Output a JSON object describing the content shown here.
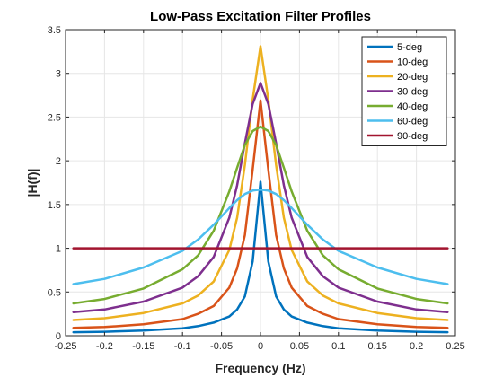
{
  "chart_data": {
    "type": "line",
    "title": "Low-Pass Excitation Filter Profiles",
    "xlabel": "Frequency (Hz)",
    "ylabel": "|H(f)|",
    "xlim": [
      -0.25,
      0.25
    ],
    "ylim": [
      0,
      3.5
    ],
    "xticks": [
      -0.25,
      -0.2,
      -0.15,
      -0.1,
      -0.05,
      0,
      0.05,
      0.1,
      0.15,
      0.2,
      0.25
    ],
    "xtick_labels": [
      "-0.25",
      "-0.2",
      "-0.15",
      "-0.1",
      "-0.05",
      "0",
      "0.05",
      "0.1",
      "0.15",
      "0.2",
      "0.25"
    ],
    "yticks": [
      0,
      0.5,
      1,
      1.5,
      2,
      2.5,
      3,
      3.5
    ],
    "ytick_labels": [
      "0",
      "0.5",
      "1",
      "1.5",
      "2",
      "2.5",
      "3",
      "3.5"
    ],
    "grid": true,
    "legend_position": "top-right",
    "x_range_plotted": [
      -0.24,
      0.24
    ],
    "series": [
      {
        "name": "5-deg",
        "color": "#0072BD",
        "x": [
          -0.24,
          -0.2,
          -0.15,
          -0.1,
          -0.08,
          -0.06,
          -0.04,
          -0.03,
          -0.02,
          -0.01,
          0,
          0.01,
          0.02,
          0.03,
          0.04,
          0.06,
          0.08,
          0.1,
          0.15,
          0.2,
          0.24
        ],
        "y": [
          0.04,
          0.045,
          0.06,
          0.085,
          0.11,
          0.15,
          0.22,
          0.3,
          0.45,
          0.85,
          1.76,
          0.85,
          0.45,
          0.3,
          0.22,
          0.15,
          0.11,
          0.085,
          0.06,
          0.045,
          0.04
        ]
      },
      {
        "name": "10-deg",
        "color": "#D95319",
        "x": [
          -0.24,
          -0.2,
          -0.15,
          -0.1,
          -0.08,
          -0.06,
          -0.04,
          -0.03,
          -0.02,
          -0.01,
          0,
          0.01,
          0.02,
          0.03,
          0.04,
          0.06,
          0.08,
          0.1,
          0.15,
          0.2,
          0.24
        ],
        "y": [
          0.09,
          0.1,
          0.13,
          0.19,
          0.25,
          0.34,
          0.55,
          0.77,
          1.15,
          1.9,
          2.69,
          1.9,
          1.15,
          0.77,
          0.55,
          0.34,
          0.25,
          0.19,
          0.13,
          0.1,
          0.09
        ]
      },
      {
        "name": "20-deg",
        "color": "#EDB120",
        "x": [
          -0.24,
          -0.2,
          -0.15,
          -0.1,
          -0.08,
          -0.06,
          -0.04,
          -0.03,
          -0.02,
          -0.01,
          0,
          0.01,
          0.02,
          0.03,
          0.04,
          0.06,
          0.08,
          0.1,
          0.15,
          0.2,
          0.24
        ],
        "y": [
          0.18,
          0.2,
          0.26,
          0.37,
          0.46,
          0.62,
          0.98,
          1.35,
          1.95,
          2.7,
          3.31,
          2.7,
          1.95,
          1.35,
          0.98,
          0.62,
          0.46,
          0.37,
          0.26,
          0.2,
          0.18
        ]
      },
      {
        "name": "30-deg",
        "color": "#7E2F8E",
        "x": [
          -0.24,
          -0.2,
          -0.15,
          -0.1,
          -0.08,
          -0.06,
          -0.04,
          -0.03,
          -0.02,
          -0.01,
          0,
          0.01,
          0.02,
          0.03,
          0.04,
          0.06,
          0.08,
          0.1,
          0.15,
          0.2,
          0.24
        ],
        "y": [
          0.27,
          0.3,
          0.39,
          0.55,
          0.68,
          0.9,
          1.35,
          1.72,
          2.2,
          2.65,
          2.89,
          2.65,
          2.2,
          1.72,
          1.35,
          0.9,
          0.68,
          0.55,
          0.39,
          0.3,
          0.27
        ]
      },
      {
        "name": "40-deg",
        "color": "#77AC30",
        "x": [
          -0.24,
          -0.2,
          -0.15,
          -0.1,
          -0.08,
          -0.06,
          -0.04,
          -0.03,
          -0.02,
          -0.01,
          0,
          0.01,
          0.02,
          0.03,
          0.04,
          0.06,
          0.08,
          0.1,
          0.15,
          0.2,
          0.24
        ],
        "y": [
          0.37,
          0.42,
          0.54,
          0.76,
          0.92,
          1.2,
          1.65,
          1.92,
          2.18,
          2.34,
          2.39,
          2.34,
          2.18,
          1.92,
          1.65,
          1.2,
          0.92,
          0.76,
          0.54,
          0.42,
          0.37
        ]
      },
      {
        "name": "60-deg",
        "color": "#4DBEEE",
        "x": [
          -0.24,
          -0.2,
          -0.15,
          -0.1,
          -0.08,
          -0.06,
          -0.04,
          -0.03,
          -0.02,
          -0.01,
          0,
          0.01,
          0.02,
          0.03,
          0.04,
          0.06,
          0.08,
          0.1,
          0.15,
          0.2,
          0.24
        ],
        "y": [
          0.59,
          0.65,
          0.78,
          0.97,
          1.1,
          1.27,
          1.46,
          1.55,
          1.62,
          1.66,
          1.67,
          1.66,
          1.62,
          1.55,
          1.46,
          1.27,
          1.1,
          0.97,
          0.78,
          0.65,
          0.59
        ]
      },
      {
        "name": "90-deg",
        "color": "#A2142F",
        "x": [
          -0.24,
          0.24
        ],
        "y": [
          1.0,
          1.0
        ]
      }
    ]
  }
}
